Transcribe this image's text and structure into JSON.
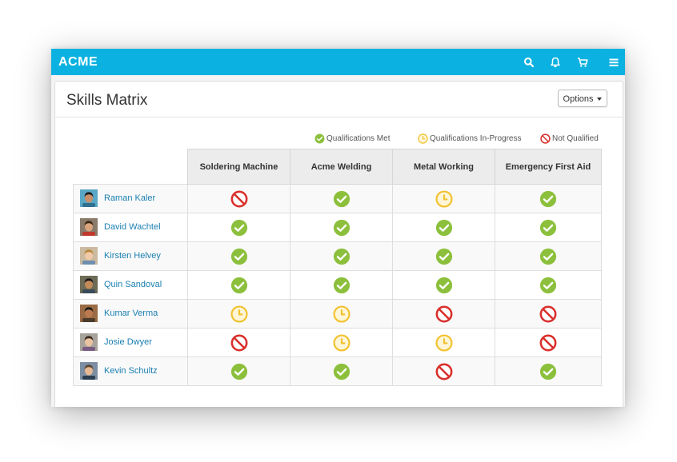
{
  "app": {
    "brand": "ACME",
    "accent_color": "#0bb1e0",
    "nav_icons": [
      "search-icon",
      "bell-icon",
      "cart-icon",
      "menu-icon"
    ]
  },
  "page": {
    "title": "Skills Matrix",
    "options_label": "Options"
  },
  "legend": {
    "met": "Qualifications Met",
    "in_progress": "Qualifications In-Progress",
    "not_qualified": "Not Qualified"
  },
  "status_colors": {
    "met": "#8cc03c",
    "in_progress": "#f2c230",
    "not_qualified": "#d9302c"
  },
  "skills": [
    "Soldering Machine",
    "Acme Welding",
    "Metal Working",
    "Emergency First Aid"
  ],
  "employees": [
    {
      "name": "Raman Kaler",
      "statuses": [
        "not_qualified",
        "met",
        "in_progress",
        "met"
      ]
    },
    {
      "name": "David Wachtel",
      "statuses": [
        "met",
        "met",
        "met",
        "met"
      ]
    },
    {
      "name": "Kirsten Helvey",
      "statuses": [
        "met",
        "met",
        "met",
        "met"
      ]
    },
    {
      "name": "Quin Sandoval",
      "statuses": [
        "met",
        "met",
        "met",
        "met"
      ]
    },
    {
      "name": "Kumar Verma",
      "statuses": [
        "in_progress",
        "in_progress",
        "not_qualified",
        "not_qualified"
      ]
    },
    {
      "name": "Josie Dwyer",
      "statuses": [
        "not_qualified",
        "in_progress",
        "in_progress",
        "not_qualified"
      ]
    },
    {
      "name": "Kevin Schultz",
      "statuses": [
        "met",
        "met",
        "not_qualified",
        "met"
      ]
    }
  ]
}
